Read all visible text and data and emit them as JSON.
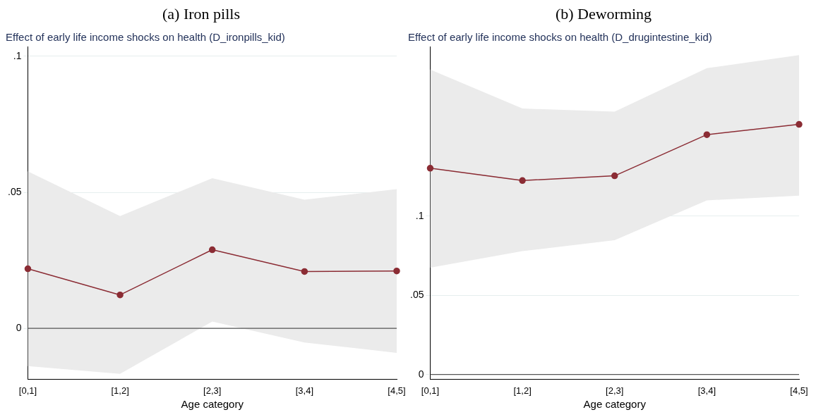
{
  "chart_data": [
    {
      "type": "line",
      "title": "(a) Iron pills",
      "subtitle": "Effect of early life income shocks on health (D_ironpills_kid)",
      "xlabel": "Age category",
      "categories": [
        "[0,1]",
        "[1,2]",
        "[2,3]",
        "[3,4]",
        "[4,5]"
      ],
      "series": [
        {
          "color": "#8b2c34",
          "values": [
            0.0219,
            0.0123,
            0.0289,
            0.0209,
            0.0211
          ],
          "lower": [
            -0.0139,
            -0.0167,
            0.0025,
            -0.0052,
            -0.009
          ],
          "upper": [
            0.0577,
            0.0413,
            0.0552,
            0.0473,
            0.0512
          ]
        }
      ],
      "ylim": [
        -0.0187,
        0.1035
      ],
      "yticks": [
        {
          "value": 0,
          "label": "0"
        },
        {
          "value": 0.05,
          "label": ".05"
        },
        {
          "value": 0.1,
          "label": ".1"
        }
      ],
      "grid": "y",
      "marker": "circle",
      "line_style": "solid",
      "legend": false,
      "ref_lines": [
        {
          "axis": "y",
          "value": 0,
          "color": "#555555"
        }
      ]
    },
    {
      "type": "line",
      "title": "(b) Deworming",
      "subtitle": "Effect of early life income shocks on health (D_drugintestine_kid)",
      "xlabel": "Age category",
      "categories": [
        "[0,1]",
        "[1,2]",
        "[2,3]",
        "[3,4]",
        "[4,5]"
      ],
      "series": [
        {
          "color": "#8b2c34",
          "values": [
            0.1303,
            0.1225,
            0.1255,
            0.1515,
            0.158
          ],
          "lower": [
            0.0675,
            0.0779,
            0.0848,
            0.11,
            0.113
          ],
          "upper": [
            0.1926,
            0.168,
            0.166,
            0.1935,
            0.2017
          ]
        }
      ],
      "ylim": [
        -0.003,
        0.207
      ],
      "yticks": [
        {
          "value": 0,
          "label": "0"
        },
        {
          "value": 0.05,
          "label": ".05"
        },
        {
          "value": 0.1,
          "label": ".1"
        }
      ],
      "grid": "y",
      "marker": "circle",
      "line_style": "solid",
      "legend": false,
      "ref_lines": [
        {
          "axis": "y",
          "value": 0,
          "color": "#555555"
        }
      ]
    }
  ]
}
